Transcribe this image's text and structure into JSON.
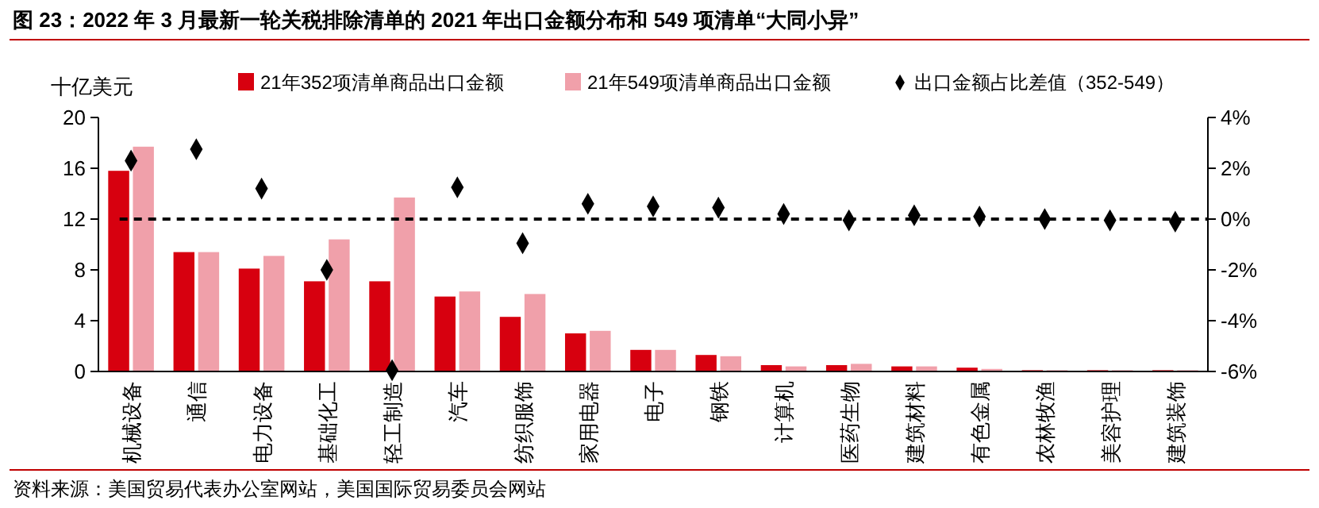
{
  "chart_data": {
    "type": "bar",
    "title": "图 23：2022 年 3 月最新一轮关税排除清单的 2021 年出口金额分布和 549 项清单“大同小异”",
    "ylabel": "十亿美元",
    "categories": [
      "机械设备",
      "通信",
      "电力设备",
      "基础化工",
      "轻工制造",
      "汽车",
      "纺织服饰",
      "家用电器",
      "电子",
      "钢铁",
      "计算机",
      "医药生物",
      "建筑材料",
      "有色金属",
      "农林牧渔",
      "美容护理",
      "建筑装饰"
    ],
    "series": [
      {
        "name": "21年352项清单商品出口金额",
        "color": "#d7000f",
        "values": [
          15.8,
          9.4,
          8.1,
          7.1,
          7.1,
          5.9,
          4.3,
          3.0,
          1.7,
          1.3,
          0.5,
          0.5,
          0.4,
          0.3,
          0.1,
          0.1,
          0.1
        ]
      },
      {
        "name": "21年549项清单商品出口金额",
        "color": "#f0a0aa",
        "values": [
          17.7,
          9.4,
          9.1,
          10.4,
          13.7,
          6.3,
          6.1,
          3.2,
          1.7,
          1.2,
          0.4,
          0.6,
          0.4,
          0.2,
          0.1,
          0.1,
          0.1
        ]
      },
      {
        "name": "出口金额占比差值（352-549）",
        "type": "scatter",
        "axis": "y2",
        "color": "#000000",
        "marker": "diamond",
        "values": [
          2.3,
          2.75,
          1.2,
          -2.0,
          -5.95,
          1.25,
          -0.95,
          0.6,
          0.5,
          0.45,
          0.2,
          -0.05,
          0.15,
          0.1,
          0.0,
          -0.05,
          -0.1
        ]
      }
    ],
    "ylim": [
      0,
      20
    ],
    "yticks": [
      0,
      4,
      8,
      12,
      16,
      20
    ],
    "y2lim": [
      -6,
      4
    ],
    "y2ticks": [
      {
        "value": -6,
        "label": "-6%"
      },
      {
        "value": -4,
        "label": "-4%"
      },
      {
        "value": -2,
        "label": "-2%"
      },
      {
        "value": 0,
        "label": "0%"
      },
      {
        "value": 2,
        "label": "2%"
      },
      {
        "value": 4,
        "label": "4%"
      }
    ],
    "ref_lines": [
      {
        "axis": "y2",
        "value": 0,
        "color": "#000000",
        "line_style": "dashed"
      }
    ],
    "legend": "top",
    "grid": false,
    "annotations": [
      "资料来源：美国贸易代表办公室网站，美国国际贸易委员会网站"
    ]
  }
}
